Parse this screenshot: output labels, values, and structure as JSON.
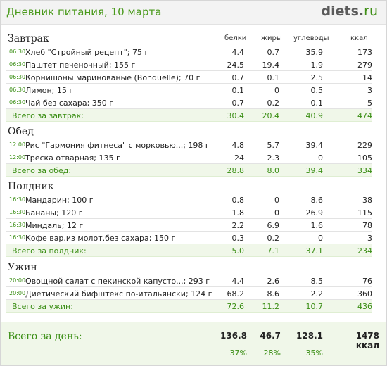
{
  "header": {
    "title": "Дневник питания, 10 марта",
    "logo_main": "diets",
    "logo_dot": ".",
    "logo_tld": "ru"
  },
  "columns": {
    "protein": "белки",
    "fat": "жиры",
    "carbs": "углеводы",
    "kcal": "ккал"
  },
  "meals": [
    {
      "title": "Завтрак",
      "items": [
        {
          "time": "06:30",
          "name": "Хлеб \"Стройный рецепт\"; 75 г",
          "p": "4.4",
          "f": "0.7",
          "c": "35.9",
          "k": "173"
        },
        {
          "time": "06:30",
          "name": "Паштет печеночный; 155 г",
          "p": "24.5",
          "f": "19.4",
          "c": "1.9",
          "k": "279"
        },
        {
          "time": "06:30",
          "name": "Корнишоны маринованые (Bonduelle); 70 г",
          "p": "0.7",
          "f": "0.1",
          "c": "2.5",
          "k": "14"
        },
        {
          "time": "06:30",
          "name": "Лимон; 15 г",
          "p": "0.1",
          "f": "0",
          "c": "0.5",
          "k": "3"
        },
        {
          "time": "06:30",
          "name": "Чай без сахара; 350 г",
          "p": "0.7",
          "f": "0.2",
          "c": "0.1",
          "k": "5"
        }
      ],
      "total": {
        "label": "Всего за завтрак:",
        "p": "30.4",
        "f": "20.4",
        "c": "40.9",
        "k": "474"
      }
    },
    {
      "title": "Обед",
      "items": [
        {
          "time": "12:00",
          "name": "Рис \"Гармония фитнеса\" с морковью...; 198 г",
          "p": "4.8",
          "f": "5.7",
          "c": "39.4",
          "k": "229"
        },
        {
          "time": "12:00",
          "name": "Треска отварная; 135 г",
          "p": "24",
          "f": "2.3",
          "c": "0",
          "k": "105"
        }
      ],
      "total": {
        "label": "Всего за обед:",
        "p": "28.8",
        "f": "8.0",
        "c": "39.4",
        "k": "334"
      }
    },
    {
      "title": "Полдник",
      "items": [
        {
          "time": "16:30",
          "name": "Мандарин; 100 г",
          "p": "0.8",
          "f": "0",
          "c": "8.6",
          "k": "38"
        },
        {
          "time": "16:30",
          "name": "Бананы; 120 г",
          "p": "1.8",
          "f": "0",
          "c": "26.9",
          "k": "115"
        },
        {
          "time": "16:30",
          "name": "Миндаль; 12 г",
          "p": "2.2",
          "f": "6.9",
          "c": "1.6",
          "k": "78"
        },
        {
          "time": "16:30",
          "name": "Кофе вар.из молот.без сахара; 150 г",
          "p": "0.3",
          "f": "0.2",
          "c": "0",
          "k": "3"
        }
      ],
      "total": {
        "label": "Всего за полдник:",
        "p": "5.0",
        "f": "7.1",
        "c": "37.1",
        "k": "234"
      }
    },
    {
      "title": "Ужин",
      "items": [
        {
          "time": "20:00",
          "name": "Овощной салат с пекинской капусто...; 293 г",
          "p": "4.4",
          "f": "2.6",
          "c": "8.5",
          "k": "76"
        },
        {
          "time": "20:00",
          "name": "Диетический бифштекс по-итальянски; 124 г",
          "p": "68.2",
          "f": "8.6",
          "c": "2.2",
          "k": "360"
        }
      ],
      "total": {
        "label": "Всего за ужин:",
        "p": "72.6",
        "f": "11.2",
        "c": "10.7",
        "k": "436"
      }
    }
  ],
  "day_total": {
    "label": "Всего за день:",
    "p": "136.8",
    "f": "46.7",
    "c": "128.1",
    "k": "1478 ккал",
    "p_pct": "37%",
    "f_pct": "28%",
    "c_pct": "35%"
  }
}
